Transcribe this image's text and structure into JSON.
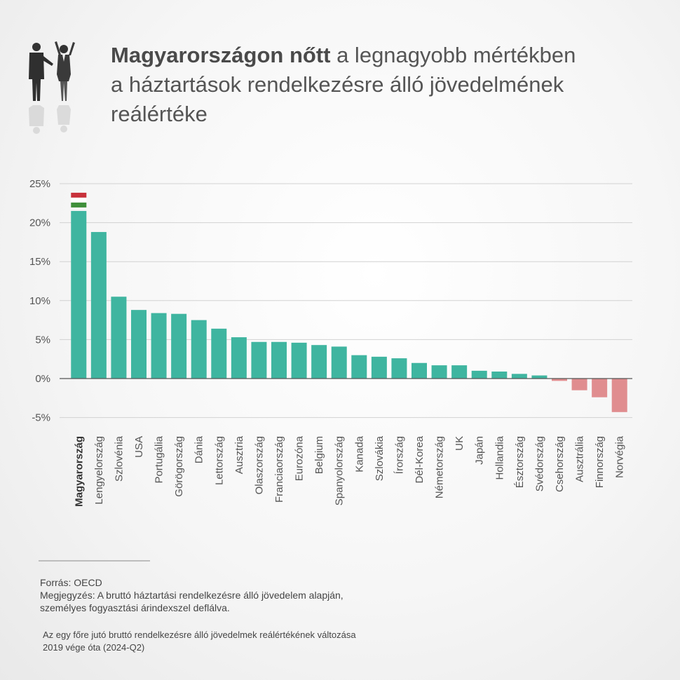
{
  "title": {
    "bold": "Magyarországon nőtt",
    "line1_rest": " a legnagyobb mértékben",
    "line2": "a háztartások rendelkezésre álló jövedelmének",
    "line3": "reálértéke"
  },
  "chart_data": {
    "type": "bar",
    "categories": [
      "Magyarország",
      "Lengyelország",
      "Szlovénia",
      "USA",
      "Portugália",
      "Görögország",
      "Dánia",
      "Lettország",
      "Ausztria",
      "Olaszország",
      "Franciaország",
      "Eurozóna",
      "Belgium",
      "Spanyolország",
      "Kanada",
      "Szlovákia",
      "Írország",
      "Dél-Korea",
      "Németország",
      "UK",
      "Japán",
      "Hollandia",
      "Észtország",
      "Svédország",
      "Csehország",
      "Ausztrália",
      "Finnország",
      "Norvégia"
    ],
    "values": [
      21.5,
      18.8,
      10.5,
      8.8,
      8.4,
      8.3,
      7.5,
      6.4,
      5.3,
      4.7,
      4.7,
      4.6,
      4.3,
      4.1,
      3.0,
      2.8,
      2.6,
      2.0,
      1.7,
      1.7,
      1.0,
      0.9,
      0.6,
      0.4,
      -0.3,
      -1.5,
      -2.4,
      -4.3
    ],
    "highlight": "Magyarország",
    "yticks": [
      "25%",
      "20%",
      "15%",
      "10%",
      "5%",
      "0%",
      "-5%"
    ],
    "ylim": [
      -5,
      25
    ],
    "grid": true,
    "colors": {
      "positive": "#3fb5a0",
      "negative": "#e08d8f",
      "flag_red": "#c8313b",
      "flag_white": "#ffffff",
      "flag_green": "#3f8f3a"
    }
  },
  "notes": {
    "source": "Forrás: OECD",
    "note_line1": "Megjegyzés: A bruttó háztartási rendelkezésre álló jövedelem alapján,",
    "note_line2": "személyes fogyasztási árindexszel deflálva."
  },
  "caption": {
    "line1": "Az egy főre jutó bruttó rendelkezésre álló jövedelmek reálértékének változása",
    "line2": "2019 vége óta (2024-Q2)"
  },
  "icons": {
    "people": "business-people-celebrating-icon"
  }
}
